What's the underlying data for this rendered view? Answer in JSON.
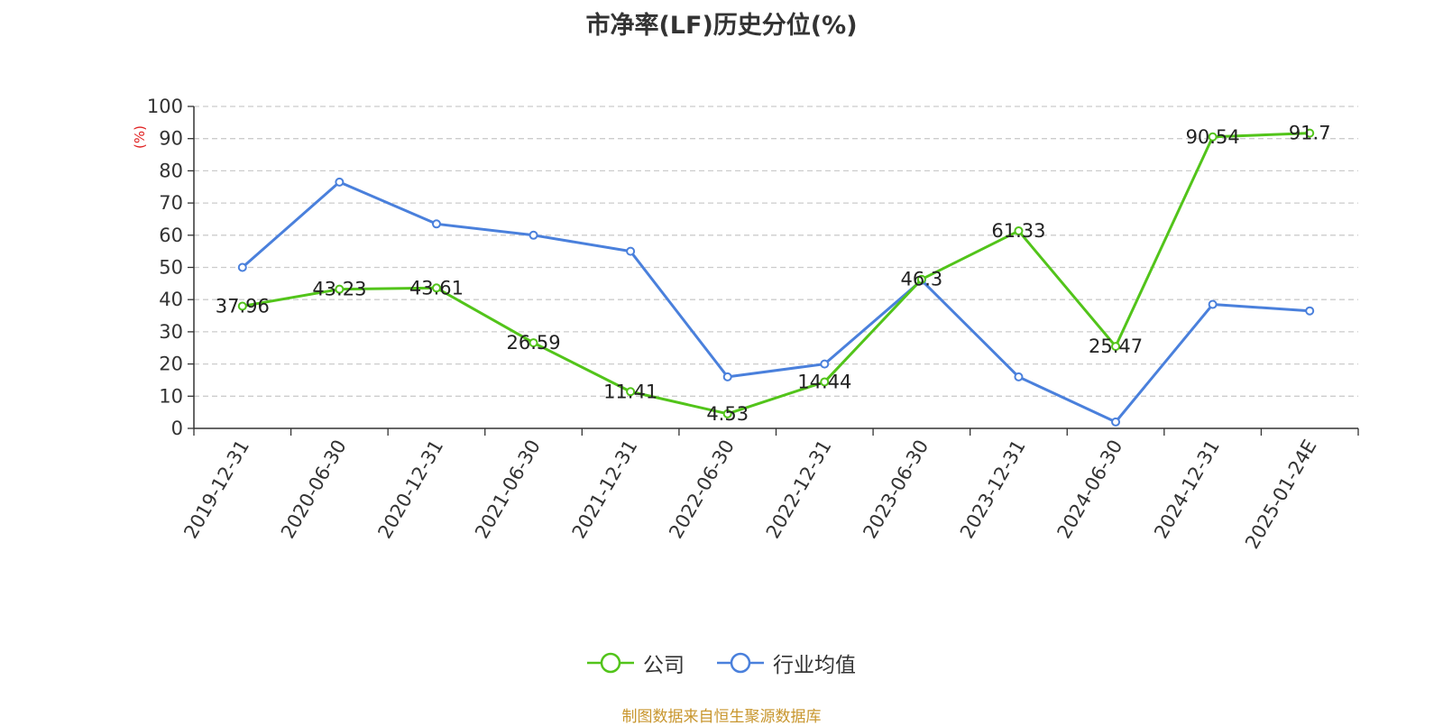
{
  "chart_data": {
    "type": "line",
    "title": "市净率(LF)历史分位(%)",
    "ylabel": "(%)",
    "ylim": [
      0,
      100
    ],
    "yticks": [
      0,
      10,
      20,
      30,
      40,
      50,
      60,
      70,
      80,
      90,
      100
    ],
    "categories": [
      "2019-12-31",
      "2020-06-30",
      "2020-12-31",
      "2021-06-30",
      "2021-12-31",
      "2022-06-30",
      "2022-12-31",
      "2023-06-30",
      "2023-12-31",
      "2024-06-30",
      "2024-12-31",
      "2025-01-24E"
    ],
    "grid": true,
    "legend_position": "bottom",
    "series": [
      {
        "name": "公司",
        "color": "#52c41a",
        "values": [
          37.96,
          43.23,
          43.61,
          26.59,
          11.41,
          4.53,
          14.44,
          46.3,
          61.33,
          25.47,
          90.54,
          91.7
        ],
        "labels": [
          "37.96",
          "43.23",
          "43.61",
          "26.59",
          "11.41",
          "4.53",
          "14.44",
          "46.3",
          "61.33",
          "25.47",
          "90.54",
          "91.7"
        ]
      },
      {
        "name": "行业均值",
        "color": "#4a80dc",
        "values": [
          50,
          76.5,
          63.5,
          60,
          55,
          16,
          20,
          46,
          16,
          2,
          38.5,
          36.5
        ]
      }
    ],
    "source": "制图数据来自恒生聚源数据库"
  }
}
